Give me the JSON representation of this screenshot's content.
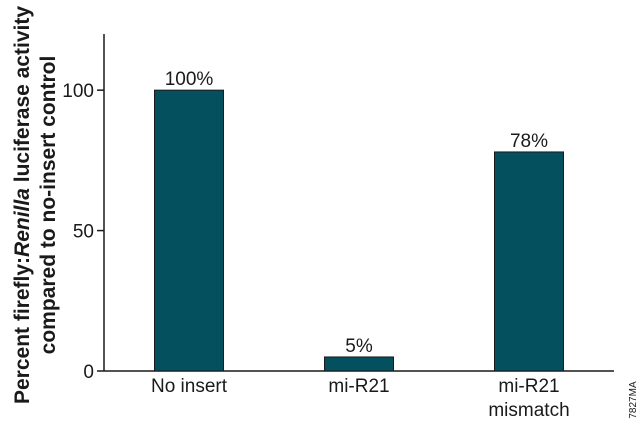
{
  "chart_data": {
    "type": "bar",
    "categories": [
      [
        "No insert"
      ],
      [
        "mi-R21"
      ],
      [
        "mi-R21",
        "mismatch"
      ]
    ],
    "values": [
      100,
      5,
      78
    ],
    "data_labels": [
      "100%",
      "5%",
      "78%"
    ],
    "ylabel_lines": [
      [
        "Percent firefly:",
        "Renilla",
        " luciferase activity"
      ],
      [
        "compared to no-insert control"
      ]
    ],
    "yticks": [
      0,
      50,
      100
    ],
    "ytick_labels": [
      "0",
      "50",
      "100"
    ],
    "ylim": [
      0,
      120
    ],
    "grid": false,
    "bar_color": "#04505e"
  },
  "figure_code": "7827MA"
}
